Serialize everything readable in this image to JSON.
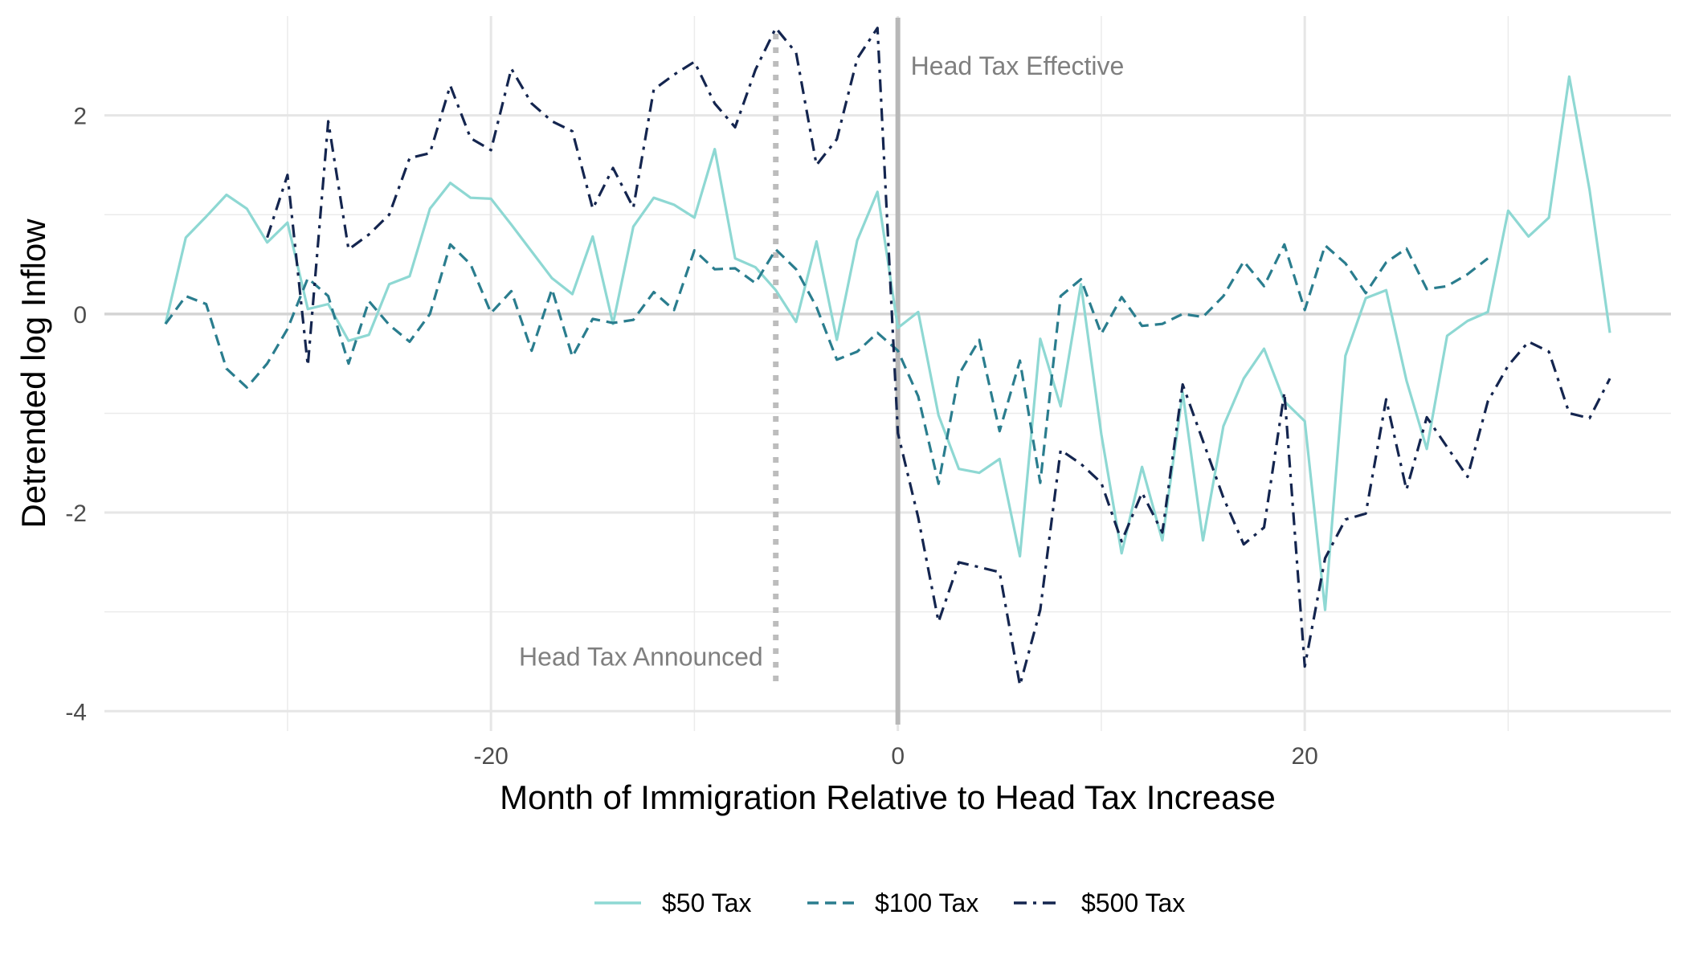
{
  "chart_data": {
    "type": "line",
    "title": "",
    "xlabel": "Month of Immigration Relative to Head Tax Increase",
    "ylabel": "Detrended log Inflow",
    "xlim": [
      -39,
      38
    ],
    "ylim": [
      -4.2,
      3.0
    ],
    "x_ticks": [
      {
        "value": -20,
        "label": "-20"
      },
      {
        "value": 0,
        "label": "0"
      },
      {
        "value": 20,
        "label": "20"
      }
    ],
    "y_ticks": [
      {
        "value": -4,
        "label": "-4"
      },
      {
        "value": -2,
        "label": "-2"
      },
      {
        "value": 0,
        "label": "0"
      },
      {
        "value": 2,
        "label": "2"
      }
    ],
    "grid": true,
    "legend_position": "bottom",
    "annotations": [
      {
        "label": "Head Tax Announced",
        "x": -6,
        "style": "dotted"
      },
      {
        "label": "Head Tax Effective",
        "x": 0,
        "style": "solid"
      }
    ],
    "series": [
      {
        "name": "$50 Tax",
        "color": "#8ed8d3",
        "dash": "solid",
        "points": [
          [
            -36,
            -0.1
          ],
          [
            -35,
            0.77
          ],
          [
            -34,
            0.98
          ],
          [
            -33,
            1.2
          ],
          [
            -32,
            1.06
          ],
          [
            -31,
            0.72
          ],
          [
            -30,
            0.92
          ],
          [
            -29,
            0.05
          ],
          [
            -28,
            0.1
          ],
          [
            -27,
            -0.27
          ],
          [
            -26,
            -0.21
          ],
          [
            -25,
            0.3
          ],
          [
            -24,
            0.38
          ],
          [
            -23,
            1.06
          ],
          [
            -22,
            1.32
          ],
          [
            -21,
            1.17
          ],
          [
            -20,
            1.16
          ],
          [
            -19,
            0.9
          ],
          [
            -18,
            0.63
          ],
          [
            -17,
            0.36
          ],
          [
            -16,
            0.2
          ],
          [
            -15,
            0.78
          ],
          [
            -14,
            -0.1
          ],
          [
            -13,
            0.88
          ],
          [
            -12,
            1.17
          ],
          [
            -11,
            1.1
          ],
          [
            -10,
            0.97
          ],
          [
            -9,
            1.66
          ],
          [
            -8,
            0.56
          ],
          [
            -7,
            0.47
          ],
          [
            -6,
            0.24
          ],
          [
            -5,
            -0.08
          ],
          [
            -4,
            0.73
          ],
          [
            -3,
            -0.26
          ],
          [
            -2,
            0.74
          ],
          [
            -1,
            1.23
          ],
          [
            0,
            -0.14
          ],
          [
            1,
            0.02
          ],
          [
            2,
            -1.02
          ],
          [
            3,
            -1.56
          ],
          [
            4,
            -1.6
          ],
          [
            5,
            -1.46
          ],
          [
            6,
            -2.44
          ],
          [
            7,
            -0.25
          ],
          [
            8,
            -0.93
          ],
          [
            9,
            0.3
          ],
          [
            10,
            -1.21
          ],
          [
            11,
            -2.41
          ],
          [
            12,
            -1.54
          ],
          [
            13,
            -2.28
          ],
          [
            14,
            -0.79
          ],
          [
            15,
            -2.28
          ],
          [
            16,
            -1.13
          ],
          [
            17,
            -0.65
          ],
          [
            18,
            -0.35
          ],
          [
            19,
            -0.88
          ],
          [
            20,
            -1.08
          ],
          [
            21,
            -2.98
          ],
          [
            22,
            -0.42
          ],
          [
            23,
            0.16
          ],
          [
            24,
            0.24
          ],
          [
            25,
            -0.67
          ],
          [
            26,
            -1.36
          ],
          [
            27,
            -0.22
          ],
          [
            28,
            -0.07
          ],
          [
            29,
            0.02
          ],
          [
            30,
            1.04
          ],
          [
            31,
            0.78
          ],
          [
            32,
            0.97
          ],
          [
            33,
            2.39
          ],
          [
            34,
            1.25
          ],
          [
            35,
            -0.19
          ]
        ]
      },
      {
        "name": "$100 Tax",
        "color": "#2a7d8e",
        "dash": "dashed",
        "points": [
          [
            -36,
            -0.1
          ],
          [
            -35,
            0.18
          ],
          [
            -34,
            0.1
          ],
          [
            -33,
            -0.55
          ],
          [
            -32,
            -0.74
          ],
          [
            -31,
            -0.5
          ],
          [
            -30,
            -0.15
          ],
          [
            -29,
            0.36
          ],
          [
            -28,
            0.18
          ],
          [
            -27,
            -0.5
          ],
          [
            -26,
            0.13
          ],
          [
            -25,
            -0.11
          ],
          [
            -24,
            -0.28
          ],
          [
            -23,
            0.0
          ],
          [
            -22,
            0.7
          ],
          [
            -21,
            0.5
          ],
          [
            -20,
            0.01
          ],
          [
            -19,
            0.23
          ],
          [
            -18,
            -0.37
          ],
          [
            -17,
            0.25
          ],
          [
            -16,
            -0.43
          ],
          [
            -15,
            -0.05
          ],
          [
            -14,
            -0.09
          ],
          [
            -13,
            -0.06
          ],
          [
            -12,
            0.22
          ],
          [
            -11,
            0.04
          ],
          [
            -10,
            0.64
          ],
          [
            -9,
            0.45
          ],
          [
            -8,
            0.46
          ],
          [
            -7,
            0.31
          ],
          [
            -6,
            0.65
          ],
          [
            -5,
            0.45
          ],
          [
            -4,
            0.07
          ],
          [
            -3,
            -0.46
          ],
          [
            -2,
            -0.38
          ],
          [
            -1,
            -0.19
          ],
          [
            0,
            -0.37
          ],
          [
            1,
            -0.83
          ],
          [
            2,
            -1.71
          ],
          [
            3,
            -0.61
          ],
          [
            4,
            -0.26
          ],
          [
            5,
            -1.18
          ],
          [
            6,
            -0.47
          ],
          [
            7,
            -1.7
          ],
          [
            8,
            0.18
          ],
          [
            9,
            0.35
          ],
          [
            10,
            -0.2
          ],
          [
            11,
            0.17
          ],
          [
            12,
            -0.12
          ],
          [
            13,
            -0.1
          ],
          [
            14,
            0.0
          ],
          [
            15,
            -0.03
          ],
          [
            16,
            0.18
          ],
          [
            17,
            0.53
          ],
          [
            18,
            0.28
          ],
          [
            19,
            0.7
          ],
          [
            20,
            0.04
          ],
          [
            21,
            0.69
          ],
          [
            22,
            0.51
          ],
          [
            23,
            0.21
          ],
          [
            24,
            0.52
          ],
          [
            25,
            0.66
          ],
          [
            26,
            0.25
          ],
          [
            27,
            0.28
          ],
          [
            28,
            0.4
          ],
          [
            29,
            0.56
          ]
        ]
      },
      {
        "name": "$500 Tax",
        "color": "#14254f",
        "dash": "dashdot",
        "points": [
          [
            -31,
            0.77
          ],
          [
            -30,
            1.4
          ],
          [
            -29,
            -0.52
          ],
          [
            -28,
            1.94
          ],
          [
            -27,
            0.65
          ],
          [
            -26,
            0.8
          ],
          [
            -25,
            1.0
          ],
          [
            -24,
            1.57
          ],
          [
            -23,
            1.62
          ],
          [
            -22,
            2.3
          ],
          [
            -21,
            1.77
          ],
          [
            -20,
            1.65
          ],
          [
            -19,
            2.47
          ],
          [
            -18,
            2.12
          ],
          [
            -17,
            1.94
          ],
          [
            -16,
            1.84
          ],
          [
            -15,
            1.06
          ],
          [
            -14,
            1.47
          ],
          [
            -13,
            1.07
          ],
          [
            -12,
            2.26
          ],
          [
            -11,
            2.41
          ],
          [
            -10,
            2.54
          ],
          [
            -9,
            2.12
          ],
          [
            -8,
            1.88
          ],
          [
            -7,
            2.46
          ],
          [
            -6,
            2.88
          ],
          [
            -5,
            2.63
          ],
          [
            -4,
            1.5
          ],
          [
            -3,
            1.76
          ],
          [
            -2,
            2.57
          ],
          [
            -1,
            2.88
          ],
          [
            0,
            -1.2
          ],
          [
            1,
            -2.05
          ],
          [
            2,
            -3.1
          ],
          [
            3,
            -2.5
          ],
          [
            4,
            -2.55
          ],
          [
            5,
            -2.6
          ],
          [
            6,
            -3.74
          ],
          [
            7,
            -2.98
          ],
          [
            8,
            -1.37
          ],
          [
            9,
            -1.51
          ],
          [
            10,
            -1.7
          ],
          [
            11,
            -2.29
          ],
          [
            12,
            -1.8
          ],
          [
            13,
            -2.2
          ],
          [
            14,
            -0.71
          ],
          [
            15,
            -1.28
          ],
          [
            16,
            -1.85
          ],
          [
            17,
            -2.32
          ],
          [
            18,
            -2.15
          ],
          [
            19,
            -0.79
          ],
          [
            20,
            -3.55
          ],
          [
            21,
            -2.46
          ],
          [
            22,
            -2.07
          ],
          [
            23,
            -2.01
          ],
          [
            24,
            -0.86
          ],
          [
            25,
            -1.77
          ],
          [
            26,
            -1.04
          ],
          [
            27,
            -1.34
          ],
          [
            28,
            -1.64
          ],
          [
            29,
            -0.88
          ],
          [
            30,
            -0.52
          ],
          [
            31,
            -0.28
          ],
          [
            32,
            -0.38
          ],
          [
            33,
            -1.0
          ],
          [
            34,
            -1.05
          ],
          [
            35,
            -0.65
          ]
        ]
      }
    ]
  }
}
